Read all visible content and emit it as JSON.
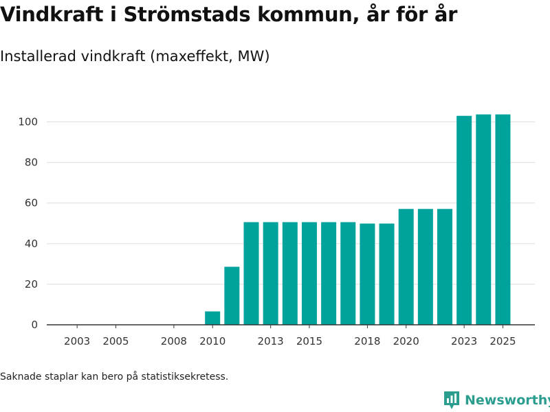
{
  "header": {
    "title": "Vindkraft i Strömstads kommun, år för år",
    "subtitle": "Installerad vindkraft (maxeffekt, MW)"
  },
  "footnote": "Saknade staplar kan bero på statistiksekretess.",
  "brand": {
    "name": "Newsworthy",
    "icon": "newsworthy-logo-icon",
    "color": "#2a9d8f"
  },
  "colors": {
    "bar": "#00a39b",
    "grid": "#dddddd",
    "axis": "#333333"
  },
  "chart_data": {
    "type": "bar",
    "title": "Vindkraft i Strömstads kommun, år för år",
    "subtitle": "Installerad vindkraft (maxeffekt, MW)",
    "xlabel": "",
    "ylabel": "",
    "ylim": [
      0,
      110
    ],
    "yticks": [
      0,
      20,
      40,
      60,
      80,
      100
    ],
    "xtick_labels": [
      "2003",
      "2005",
      "2008",
      "2010",
      "2013",
      "2015",
      "2018",
      "2020",
      "2023",
      "2025"
    ],
    "categories": [
      "2002",
      "2003",
      "2004",
      "2005",
      "2006",
      "2007",
      "2008",
      "2009",
      "2010",
      "2011",
      "2012",
      "2013",
      "2014",
      "2015",
      "2016",
      "2017",
      "2018",
      "2019",
      "2020",
      "2021",
      "2022",
      "2023",
      "2024",
      "2025"
    ],
    "values": [
      0,
      0,
      0,
      0,
      0,
      0,
      0,
      0,
      6.6,
      28.6,
      50.6,
      50.6,
      50.6,
      50.6,
      50.6,
      50.6,
      49.9,
      49.9,
      57.1,
      57.1,
      57.1,
      103,
      103.7,
      103.7
    ],
    "grid": true
  }
}
